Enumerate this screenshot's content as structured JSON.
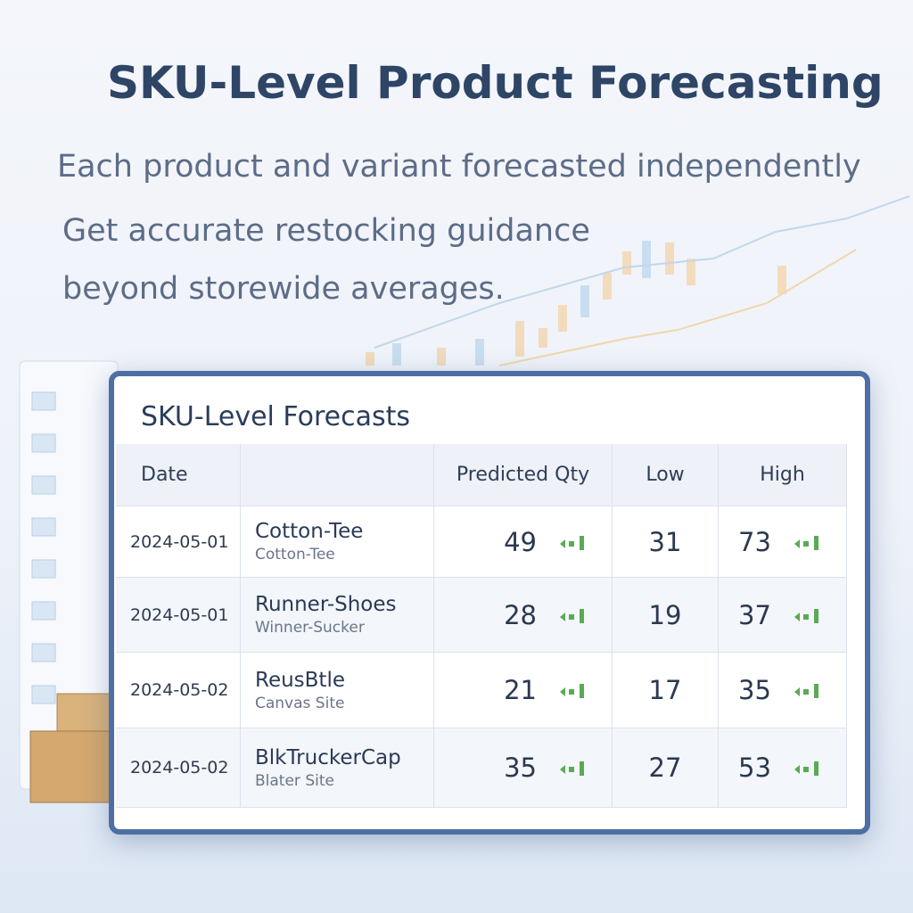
{
  "header": {
    "title": "SKU-Level Product Forecasting",
    "lines": [
      "Each product and variant forecasted independently",
      "Get accurate restocking guidance",
      "beyond storewide averages."
    ]
  },
  "table": {
    "title": "SKU-Level Forecasts",
    "columns": [
      "Date",
      "Predicted Qty",
      "Low",
      "High"
    ],
    "rows": [
      {
        "date": "2024-05-01",
        "name": "Cotton-Tee",
        "sub": "Cotton-Tee",
        "predicted": 49,
        "low": 31,
        "high": 73
      },
      {
        "date": "2024-05-01",
        "name": "Runner-Shoes",
        "sub": "Winner-Sucker",
        "predicted": 28,
        "low": 19,
        "high": 37
      },
      {
        "date": "2024-05-02",
        "name": "ReusBtle",
        "sub": "Canvas Site",
        "predicted": 21,
        "low": 17,
        "high": 35
      },
      {
        "date": "2024-05-02",
        "name": "BlkTruckerCap",
        "sub": "Blater Site",
        "predicted": 35,
        "low": 27,
        "high": 53
      }
    ]
  }
}
